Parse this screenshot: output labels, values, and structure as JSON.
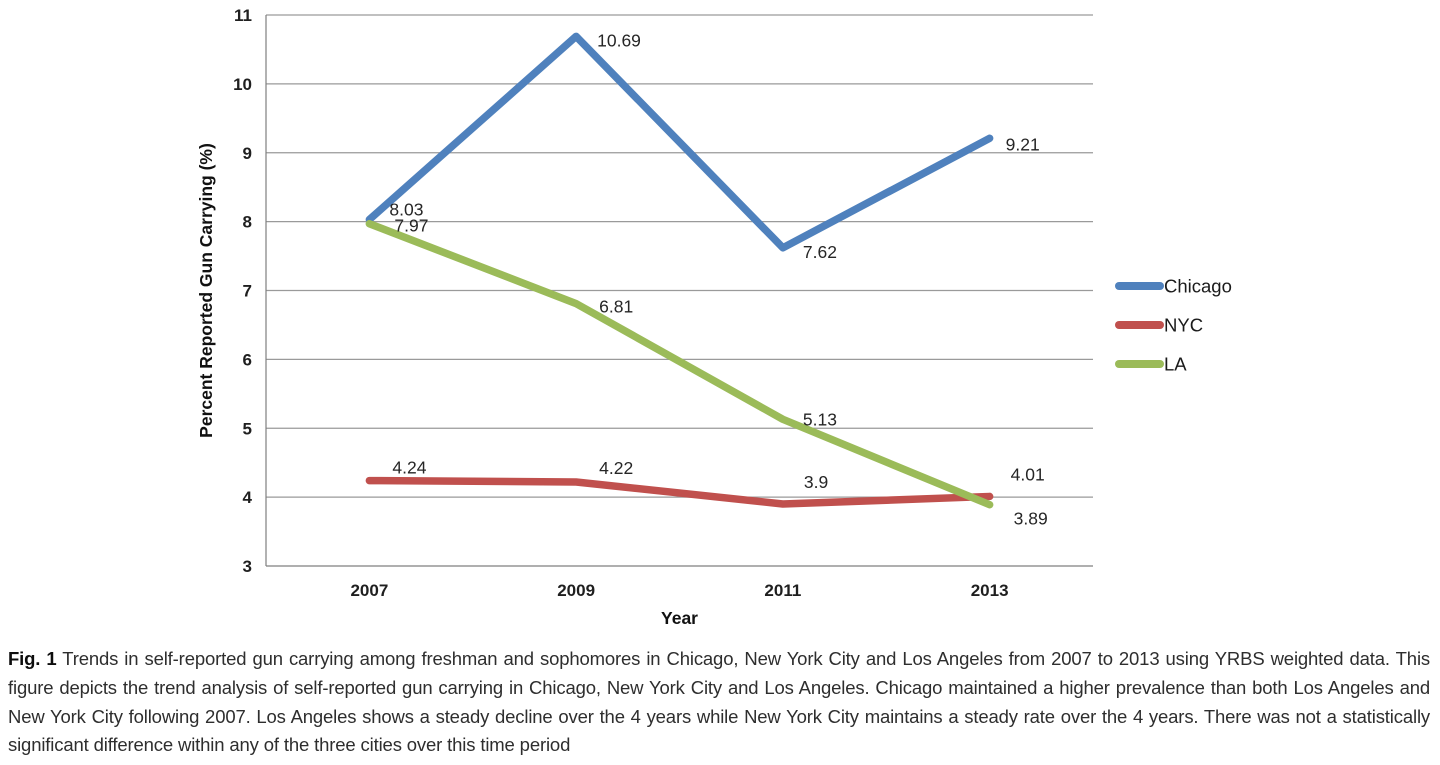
{
  "figure": {
    "caption_label": "Fig. 1",
    "caption_text": "Trends in self-reported gun carrying among freshman and sophomores in Chicago, New York City and Los Angeles from 2007 to 2013 using YRBS weighted data. This figure depicts the trend analysis of self-reported gun carrying in Chicago, New York City and Los Angeles. Chicago maintained a higher prevalence than both Los Angeles and New York City following 2007. Los Angeles shows a steady decline over the 4 years while New York City maintains a steady rate over the 4 years. There was not a statistically significant difference within any of the three cities over this time period"
  },
  "chart_data": {
    "type": "line",
    "title": "",
    "x": [
      "2007",
      "2009",
      "2011",
      "2013"
    ],
    "xlabel": "Year",
    "ylabel": "Percent Reported Gun Carrying (%)",
    "ylim": [
      3,
      11
    ],
    "ytick_step": 1,
    "grid": true,
    "data_labels": true,
    "legend_position": "right",
    "colors": {
      "grid": "#9a9a9a",
      "axis": "#7f7f7f",
      "tick_text": "#1f1f1f",
      "data_label_text": "#262626"
    },
    "series": [
      {
        "name": "Chicago",
        "color": "#4f81bd",
        "values": [
          8.03,
          10.69,
          7.62,
          9.21
        ],
        "label_offsets": [
          [
            20,
            -4
          ],
          [
            21,
            10
          ],
          [
            20,
            10
          ],
          [
            16,
            12
          ]
        ]
      },
      {
        "name": "NYC",
        "color": "#c0504d",
        "values": [
          4.24,
          4.22,
          3.9,
          4.01
        ],
        "label_offsets": [
          [
            23,
            -7
          ],
          [
            23,
            -8
          ],
          [
            21,
            -16
          ],
          [
            21,
            -16
          ]
        ]
      },
      {
        "name": "LA",
        "color": "#9bbb59",
        "values": [
          7.97,
          6.81,
          5.13,
          3.89
        ],
        "label_offsets": [
          [
            25,
            8
          ],
          [
            23,
            9
          ],
          [
            20,
            6
          ],
          [
            24,
            20
          ]
        ]
      }
    ]
  }
}
